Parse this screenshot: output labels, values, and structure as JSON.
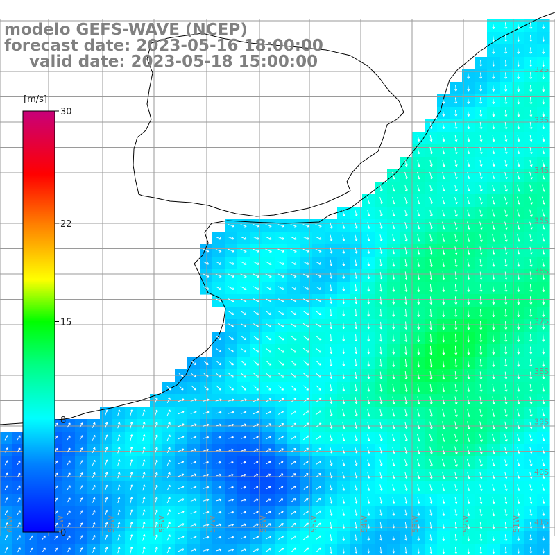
{
  "title": {
    "model": "modelo GEFS-WAVE (NCEP)",
    "forecast": "forecast date: 2023-05-16 18:00:00",
    "valid": "valid date: 2023-05-18 15:00:00"
  },
  "colorbar": {
    "unit": "[m/s]",
    "ticks": [
      "30",
      "22",
      "15",
      "8",
      "0"
    ],
    "min": 0,
    "max": 30
  },
  "lat_labels": [
    "32S",
    "33S",
    "34S",
    "35S",
    "36S",
    "37S",
    "38S",
    "39S",
    "40S",
    "41S"
  ],
  "lon_labels": [
    "61W",
    "60W",
    "59W",
    "58W",
    "57W",
    "56W",
    "55W",
    "54W",
    "53W",
    "52W",
    "51W"
  ],
  "colors": {
    "land": "#ffffff",
    "grid": "#9a9a9a",
    "coast": "#000000",
    "arrows": "#ffffff",
    "title": "#808080"
  }
}
